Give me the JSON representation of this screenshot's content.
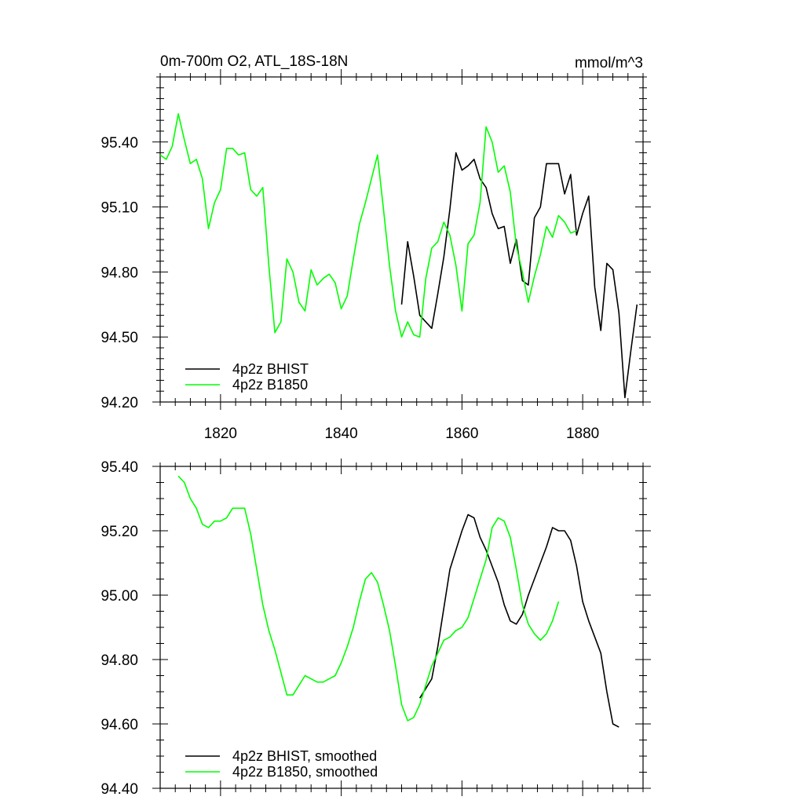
{
  "chart_data": [
    {
      "type": "line",
      "title": "0m-700m O2, ATL_18S-18N",
      "units": "mmol/m^3",
      "xlim": [
        1810,
        1890
      ],
      "ylim": [
        94.2,
        95.7
      ],
      "xticks": [
        1820,
        1840,
        1860,
        1880
      ],
      "xtick_labels": [
        "1820",
        "1840",
        "1860",
        "1880"
      ],
      "yticks": [
        94.2,
        94.5,
        94.8,
        95.1,
        95.4
      ],
      "ytick_labels": [
        "94.20",
        "94.50",
        "94.80",
        "95.10",
        "95.40"
      ],
      "grid": false,
      "legend": "bottom-left",
      "series": [
        {
          "name": "4p2z BHIST",
          "color": "#000000",
          "x": [
            1850,
            1851,
            1852,
            1853,
            1854,
            1855,
            1856,
            1857,
            1858,
            1859,
            1860,
            1861,
            1862,
            1863,
            1864,
            1865,
            1866,
            1867,
            1868,
            1869,
            1870,
            1871,
            1872,
            1873,
            1874,
            1875,
            1876,
            1877,
            1878,
            1879,
            1880,
            1881,
            1882,
            1883,
            1884,
            1885,
            1886,
            1887,
            1888,
            1889
          ],
          "y": [
            94.65,
            94.94,
            94.78,
            94.6,
            94.57,
            94.54,
            94.7,
            94.87,
            95.09,
            95.35,
            95.27,
            95.29,
            95.32,
            95.23,
            95.19,
            95.07,
            95.0,
            95.01,
            94.84,
            94.95,
            94.76,
            94.74,
            95.05,
            95.1,
            95.3,
            95.3,
            95.3,
            95.16,
            95.25,
            94.97,
            95.07,
            95.15,
            94.73,
            94.53,
            94.84,
            94.81,
            94.61,
            94.22,
            94.44,
            94.65
          ]
        },
        {
          "name": "4p2z B1850",
          "color": "#00ff00",
          "x": [
            1810,
            1811,
            1812,
            1813,
            1814,
            1815,
            1816,
            1817,
            1818,
            1819,
            1820,
            1821,
            1822,
            1823,
            1824,
            1825,
            1826,
            1827,
            1828,
            1829,
            1830,
            1831,
            1832,
            1833,
            1834,
            1835,
            1836,
            1837,
            1838,
            1839,
            1840,
            1841,
            1842,
            1843,
            1844,
            1845,
            1846,
            1847,
            1848,
            1849,
            1850,
            1851,
            1852,
            1853,
            1854,
            1855,
            1856,
            1857,
            1858,
            1859,
            1860,
            1861,
            1862,
            1863,
            1864,
            1865,
            1866,
            1867,
            1868,
            1869,
            1870,
            1871,
            1872,
            1873,
            1874,
            1875,
            1876,
            1877,
            1878,
            1879
          ],
          "y": [
            95.34,
            95.32,
            95.38,
            95.53,
            95.41,
            95.3,
            95.32,
            95.23,
            95.0,
            95.12,
            95.18,
            95.37,
            95.37,
            95.34,
            95.35,
            95.18,
            95.15,
            95.19,
            94.83,
            94.52,
            94.57,
            94.86,
            94.8,
            94.66,
            94.62,
            94.81,
            94.74,
            94.77,
            94.79,
            94.75,
            94.63,
            94.69,
            94.86,
            95.02,
            95.12,
            95.23,
            95.34,
            95.09,
            94.83,
            94.62,
            94.5,
            94.57,
            94.51,
            94.5,
            94.77,
            94.91,
            94.94,
            95.03,
            94.97,
            94.83,
            94.62,
            94.93,
            94.97,
            95.12,
            95.47,
            95.4,
            95.26,
            95.29,
            95.17,
            94.92,
            94.8,
            94.66,
            94.78,
            94.88,
            95.01,
            94.96,
            95.06,
            95.03,
            94.98,
            94.99
          ]
        }
      ]
    },
    {
      "type": "line",
      "title": "",
      "xlim": [
        1810,
        1890
      ],
      "ylim": [
        94.4,
        95.4
      ],
      "xticks": [
        1820,
        1840,
        1860,
        1880
      ],
      "yticks": [
        94.4,
        94.6,
        94.8,
        95.0,
        95.2,
        95.4
      ],
      "ytick_labels": [
        "94.40",
        "94.60",
        "94.80",
        "95.00",
        "95.20",
        "95.40"
      ],
      "grid": false,
      "legend": "bottom-left",
      "series": [
        {
          "name": "4p2z BHIST, smoothed",
          "color": "#000000",
          "x": [
            1853,
            1854,
            1855,
            1856,
            1857,
            1858,
            1859,
            1860,
            1861,
            1862,
            1863,
            1864,
            1865,
            1866,
            1867,
            1868,
            1869,
            1870,
            1871,
            1872,
            1873,
            1874,
            1875,
            1876,
            1877,
            1878,
            1879,
            1880,
            1881,
            1882,
            1883,
            1884,
            1885,
            1886
          ],
          "y": [
            94.68,
            94.71,
            94.74,
            94.84,
            94.96,
            95.08,
            95.14,
            95.2,
            95.25,
            95.24,
            95.18,
            95.14,
            95.09,
            95.04,
            94.97,
            94.92,
            94.91,
            94.94,
            95.0,
            95.05,
            95.1,
            95.15,
            95.21,
            95.2,
            95.2,
            95.17,
            95.09,
            94.98,
            94.92,
            94.87,
            94.82,
            94.7,
            94.6,
            94.59
          ]
        },
        {
          "name": "4p2z B1850, smoothed",
          "color": "#00ff00",
          "x": [
            1813,
            1814,
            1815,
            1816,
            1817,
            1818,
            1819,
            1820,
            1821,
            1822,
            1823,
            1824,
            1825,
            1826,
            1827,
            1828,
            1829,
            1830,
            1831,
            1832,
            1833,
            1834,
            1835,
            1836,
            1837,
            1838,
            1839,
            1840,
            1841,
            1842,
            1843,
            1844,
            1845,
            1846,
            1847,
            1848,
            1849,
            1850,
            1851,
            1852,
            1853,
            1854,
            1855,
            1856,
            1857,
            1858,
            1859,
            1860,
            1861,
            1862,
            1863,
            1864,
            1865,
            1866,
            1867,
            1868,
            1869,
            1870,
            1871,
            1872,
            1873,
            1874,
            1875,
            1876
          ],
          "y": [
            95.37,
            95.35,
            95.3,
            95.27,
            95.22,
            95.21,
            95.23,
            95.23,
            95.24,
            95.27,
            95.27,
            95.27,
            95.19,
            95.08,
            94.97,
            94.89,
            94.83,
            94.76,
            94.69,
            94.69,
            94.72,
            94.75,
            94.74,
            94.73,
            94.73,
            94.74,
            94.75,
            94.79,
            94.84,
            94.9,
            94.98,
            95.05,
            95.07,
            95.04,
            94.97,
            94.89,
            94.78,
            94.66,
            94.61,
            94.62,
            94.66,
            94.72,
            94.78,
            94.82,
            94.86,
            94.87,
            94.89,
            94.9,
            94.93,
            94.99,
            95.05,
            95.11,
            95.21,
            95.24,
            95.23,
            95.18,
            95.08,
            94.97,
            94.91,
            94.88,
            94.86,
            94.88,
            94.92,
            94.98
          ]
        }
      ]
    }
  ]
}
